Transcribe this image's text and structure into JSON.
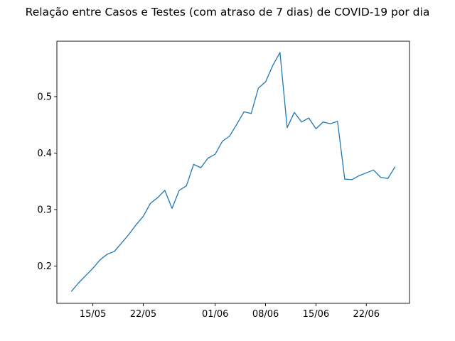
{
  "chart_data": {
    "type": "line",
    "title": "Relação entre Casos e Testes (com atraso de 7 dias) de COVID-19 por dia",
    "xlabel": "",
    "ylabel": "",
    "x": [
      "12/05",
      "13/05",
      "14/05",
      "15/05",
      "16/05",
      "17/05",
      "18/05",
      "19/05",
      "20/05",
      "21/05",
      "22/05",
      "23/05",
      "24/05",
      "25/05",
      "26/05",
      "27/05",
      "28/05",
      "29/05",
      "30/05",
      "31/05",
      "01/06",
      "02/06",
      "03/06",
      "04/06",
      "05/06",
      "06/06",
      "07/06",
      "08/06",
      "09/06",
      "10/06",
      "11/06",
      "12/06",
      "13/06",
      "14/06",
      "15/06",
      "16/06",
      "17/06",
      "18/06",
      "19/06",
      "20/06",
      "21/06",
      "22/06",
      "23/06",
      "24/06",
      "25/06",
      "26/06"
    ],
    "series": [
      {
        "values": [
          0.155,
          0.17,
          0.183,
          0.196,
          0.211,
          0.221,
          0.226,
          0.241,
          0.256,
          0.273,
          0.288,
          0.311,
          0.321,
          0.334,
          0.302,
          0.334,
          0.342,
          0.38,
          0.374,
          0.391,
          0.398,
          0.421,
          0.43,
          0.451,
          0.473,
          0.47,
          0.515,
          0.526,
          0.555,
          0.578,
          0.445,
          0.472,
          0.455,
          0.462,
          0.443,
          0.455,
          0.452,
          0.456,
          0.354,
          0.353,
          0.36,
          0.365,
          0.37,
          0.357,
          0.355,
          0.376
        ],
        "color": "#1f77b4"
      }
    ],
    "x_ticks": [
      "15/05",
      "22/05",
      "01/06",
      "08/06",
      "15/06",
      "22/06"
    ],
    "y_ticks": [
      "0.2",
      "0.3",
      "0.4",
      "0.5"
    ],
    "xlim": [
      "10/05",
      "28/06"
    ],
    "ylim": [
      0.134,
      0.598
    ],
    "grid": false,
    "legend": "none"
  }
}
